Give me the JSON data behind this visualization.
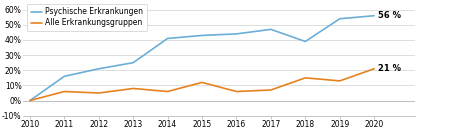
{
  "years": [
    2010,
    2011,
    2012,
    2013,
    2014,
    2015,
    2016,
    2017,
    2018,
    2019,
    2020
  ],
  "psychisch": [
    0,
    16,
    21,
    25,
    41,
    43,
    44,
    47,
    39,
    54,
    56
  ],
  "alle": [
    0,
    6,
    5,
    8,
    6,
    12,
    6,
    7,
    15,
    13,
    21
  ],
  "color_psychisch": "#6baed6",
  "color_alle": "#e6821e",
  "label_psychisch": "Psychische Erkrankungen",
  "label_alle": "Alle Erkrankungsgruppen",
  "ylim": [
    -10,
    65
  ],
  "yticks": [
    -10,
    0,
    10,
    20,
    30,
    40,
    50,
    60
  ],
  "ytick_labels": [
    "-10%",
    "0%",
    "10%",
    "20%",
    "30%",
    "40%",
    "50%",
    "60%"
  ],
  "annotation_psychisch": "56 %",
  "annotation_alle": "21 %",
  "bg_color": "#ffffff",
  "grid_color": "#d8d8d8"
}
